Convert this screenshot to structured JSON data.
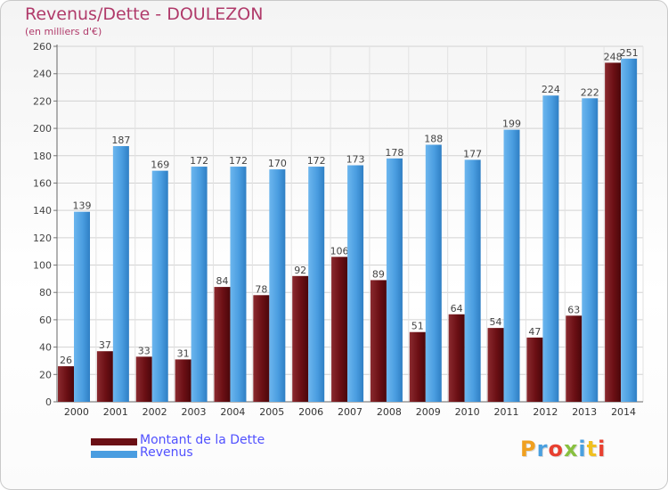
{
  "title": "Revenus/Dette - DOULEZON",
  "unit_label": "(en milliers d'€)",
  "legend": [
    {
      "label": "Montant de la Dette",
      "color": "#6b0f14"
    },
    {
      "label": "Revenus",
      "color": "#4a9de0"
    }
  ],
  "logo": {
    "text": "Proxiti",
    "colors": [
      "#f0a020",
      "#4aa0e0",
      "#e84030",
      "#88c040",
      "#4aa0e0",
      "#f0c020",
      "#e84030"
    ]
  },
  "colors": {
    "title": "#b03a6a",
    "legend_text": "#5151ff",
    "debt": "#6b0f14",
    "revenue": "#4a9de0"
  },
  "chart_data": {
    "type": "bar",
    "categories": [
      "2000",
      "2001",
      "2002",
      "2003",
      "2004",
      "2005",
      "2006",
      "2007",
      "2008",
      "2009",
      "2010",
      "2011",
      "2012",
      "2013",
      "2014"
    ],
    "series": [
      {
        "name": "Montant de la Dette",
        "values": [
          26,
          37,
          33,
          31,
          84,
          78,
          92,
          106,
          89,
          51,
          64,
          54,
          47,
          63,
          248
        ]
      },
      {
        "name": "Revenus",
        "values": [
          139,
          187,
          169,
          172,
          172,
          170,
          172,
          173,
          178,
          188,
          177,
          199,
          224,
          222,
          251
        ]
      }
    ],
    "ylim": [
      0,
      260
    ],
    "yticks": [
      0,
      20,
      40,
      60,
      80,
      100,
      120,
      140,
      160,
      180,
      200,
      220,
      240,
      260
    ],
    "grid": true,
    "legend_position": "bottom-left"
  }
}
